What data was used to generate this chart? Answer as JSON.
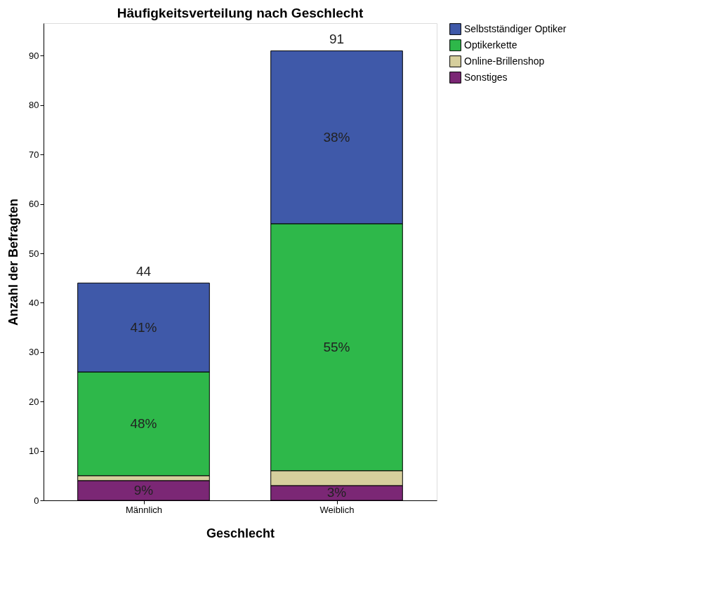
{
  "chart_data": {
    "type": "bar",
    "title": "Häufigkeitsverteilung nach Geschlecht",
    "xlabel": "Geschlecht",
    "ylabel": "Anzahl der Befragten",
    "categories": [
      "Männlich",
      "Weiblich"
    ],
    "stacked": true,
    "series": [
      {
        "name": "Sonstiges",
        "color": "#7b2775",
        "values": [
          4,
          3
        ]
      },
      {
        "name": "Online-Brillenshop",
        "color": "#d6cf9d",
        "values": [
          1,
          3
        ]
      },
      {
        "name": "Optikerkette",
        "color": "#2eb84a",
        "values": [
          21,
          50
        ]
      },
      {
        "name": "Selbstständiger Optiker",
        "color": "#3f59a9",
        "values": [
          18,
          35
        ]
      }
    ],
    "annotations": [
      "9%",
      "48%",
      "41%",
      "3%",
      "55%",
      "38%"
    ],
    "totals": [
      "44",
      "91"
    ],
    "ylim": [
      0,
      96.6
    ],
    "yticks": [
      0,
      10,
      20,
      30,
      40,
      50,
      60,
      70,
      80,
      90
    ],
    "grid": false,
    "legend": "right"
  }
}
